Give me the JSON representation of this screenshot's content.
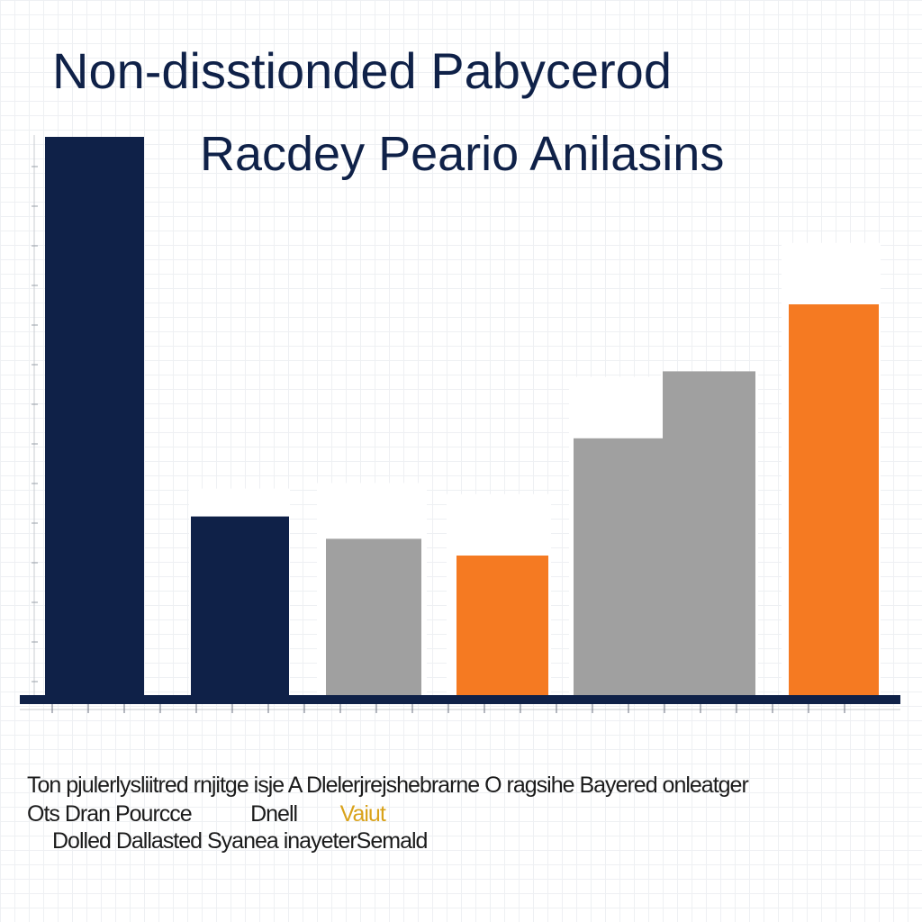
{
  "chart_data": {
    "type": "bar",
    "title": "Non-disstionded  Pabycerod",
    "subtitle": "Racdey Peario Anilasins",
    "xlabel": "",
    "ylabel": "",
    "ylim": [
      0,
      100
    ],
    "grid": true,
    "legend": "none",
    "bars": [
      {
        "value": 100,
        "ghost": 100,
        "color": "#0f2148"
      },
      {
        "value": 32,
        "ghost": 37,
        "color": "#0f2148"
      },
      {
        "value": 28,
        "ghost": 38,
        "color": "#a0a0a0"
      },
      {
        "value": 25,
        "ghost": 36,
        "color": "#f57a22"
      },
      {
        "value": 46,
        "ghost": 57,
        "color": "#a0a0a0"
      },
      {
        "value": 58,
        "ghost": 58,
        "color": "#a0a0a0"
      },
      {
        "value": 70,
        "ghost": 81,
        "color": "#f57a22"
      }
    ]
  },
  "colors": {
    "navy": "#0f2148",
    "gray": "#a0a0a0",
    "orange": "#f57a22",
    "caption_highlight": "#d9a21a"
  },
  "caption": {
    "line1": "Ton pjulerlysliitred rnjitge  isje  A Dlelerjrejshebrarne O ragsihe Bayered onleatger",
    "line2_a": "Ots Dran Pourcce",
    "line2_b": "Dnell",
    "line2_c": "Vaiut",
    "line3": "Dolled Dallasted Syanea inayeterSemald"
  }
}
